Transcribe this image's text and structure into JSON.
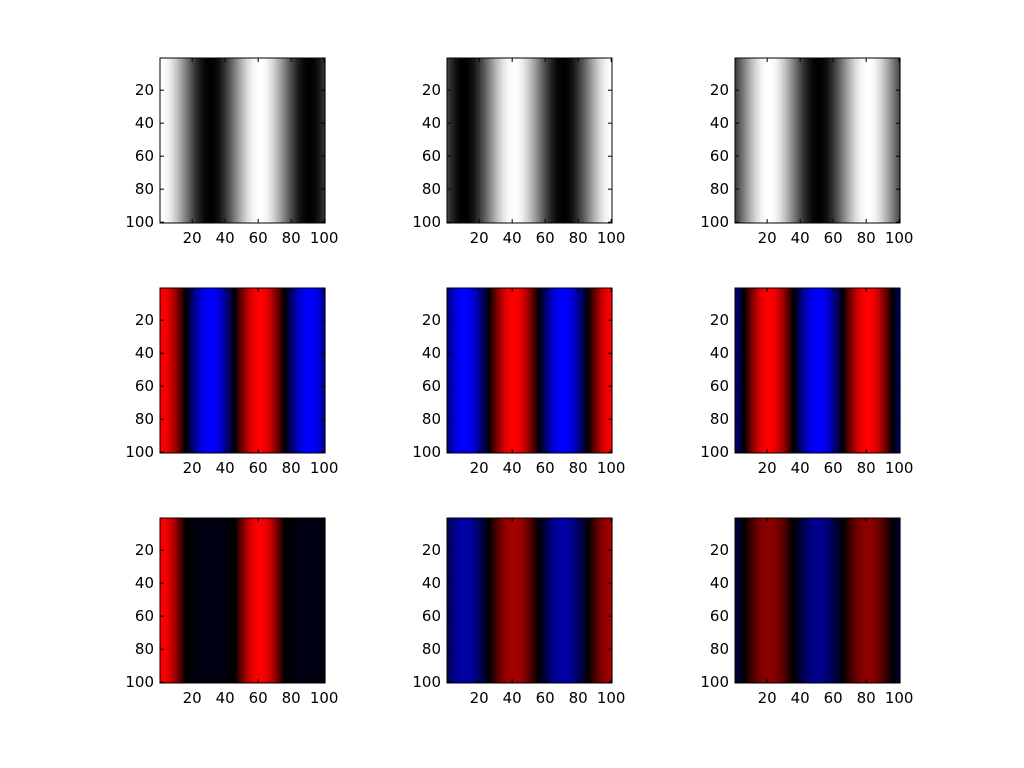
{
  "chart_data": [
    {
      "type": "heatmap",
      "colormap": "gray",
      "pattern": "vertical-stripes",
      "period": 60,
      "phase": 0,
      "x_ticks": [
        20,
        40,
        60,
        80,
        100
      ],
      "y_ticks": [
        20,
        40,
        60,
        80,
        100
      ],
      "xlim": [
        1,
        100
      ],
      "ylim": [
        1,
        100
      ],
      "y_reversed": true
    },
    {
      "type": "heatmap",
      "colormap": "gray",
      "pattern": "vertical-stripes",
      "period": 60,
      "phase": 0.3333,
      "x_ticks": [
        20,
        40,
        60,
        80,
        100
      ],
      "y_ticks": [
        20,
        40,
        60,
        80,
        100
      ],
      "xlim": [
        1,
        100
      ],
      "ylim": [
        1,
        100
      ],
      "y_reversed": true
    },
    {
      "type": "heatmap",
      "colormap": "gray",
      "pattern": "vertical-stripes",
      "period": 60,
      "phase": 0.6667,
      "x_ticks": [
        20,
        40,
        60,
        80,
        100
      ],
      "y_ticks": [
        20,
        40,
        60,
        80,
        100
      ],
      "xlim": [
        1,
        100
      ],
      "ylim": [
        1,
        100
      ],
      "y_reversed": true
    },
    {
      "type": "heatmap",
      "colormap": "red-blue",
      "pattern": "vertical-stripes",
      "period": 60,
      "phase": 0,
      "brightness": 1.0,
      "x_ticks": [
        20,
        40,
        60,
        80,
        100
      ],
      "y_ticks": [
        20,
        40,
        60,
        80,
        100
      ],
      "xlim": [
        1,
        100
      ],
      "ylim": [
        1,
        100
      ],
      "y_reversed": true
    },
    {
      "type": "heatmap",
      "colormap": "red-blue",
      "pattern": "vertical-stripes",
      "period": 60,
      "phase": 0.3333,
      "brightness": 1.0,
      "x_ticks": [
        20,
        40,
        60,
        80,
        100
      ],
      "y_ticks": [
        20,
        40,
        60,
        80,
        100
      ],
      "xlim": [
        1,
        100
      ],
      "ylim": [
        1,
        100
      ],
      "y_reversed": true
    },
    {
      "type": "heatmap",
      "colormap": "red-blue",
      "pattern": "vertical-stripes",
      "period": 60,
      "phase": 0.6667,
      "brightness": 1.0,
      "x_ticks": [
        20,
        40,
        60,
        80,
        100
      ],
      "y_ticks": [
        20,
        40,
        60,
        80,
        100
      ],
      "xlim": [
        1,
        100
      ],
      "ylim": [
        1,
        100
      ],
      "y_reversed": true
    },
    {
      "type": "heatmap",
      "colormap": "red-blue",
      "pattern": "vertical-stripes",
      "period": 60,
      "phase": 0,
      "brightness": 1.0,
      "blue_gain": 0.08,
      "x_ticks": [
        20,
        40,
        60,
        80,
        100
      ],
      "y_ticks": [
        20,
        40,
        60,
        80,
        100
      ],
      "xlim": [
        1,
        100
      ],
      "ylim": [
        1,
        100
      ],
      "y_reversed": true
    },
    {
      "type": "heatmap",
      "colormap": "red-blue",
      "pattern": "vertical-stripes",
      "period": 60,
      "phase": 0.3333,
      "brightness": 0.65,
      "x_ticks": [
        20,
        40,
        60,
        80,
        100
      ],
      "y_ticks": [
        20,
        40,
        60,
        80,
        100
      ],
      "xlim": [
        1,
        100
      ],
      "ylim": [
        1,
        100
      ],
      "y_reversed": true
    },
    {
      "type": "heatmap",
      "colormap": "red-blue",
      "pattern": "vertical-stripes",
      "period": 60,
      "phase": 0.6667,
      "brightness": 0.55,
      "x_ticks": [
        20,
        40,
        60,
        80,
        100
      ],
      "y_ticks": [
        20,
        40,
        60,
        80,
        100
      ],
      "xlim": [
        1,
        100
      ],
      "ylim": [
        1,
        100
      ],
      "y_reversed": true
    }
  ]
}
